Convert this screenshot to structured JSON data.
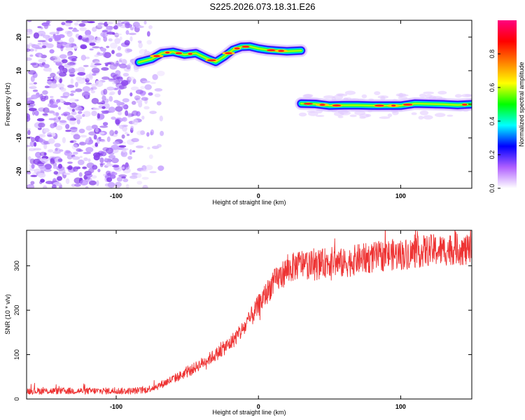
{
  "title": "S225.2026.073.18.31.E26",
  "chart_data": [
    {
      "type": "heatmap",
      "title": "",
      "xlabel": "Height of straight line (km)",
      "ylabel": "Frequency (Hz)",
      "xlim": [
        -163,
        150
      ],
      "ylim": [
        -25,
        25
      ],
      "xticks": [
        -100,
        0,
        100
      ],
      "xtick_labels": [
        "-100",
        "0",
        "100"
      ],
      "yticks": [
        -20,
        -10,
        0,
        10,
        20
      ],
      "ytick_labels": [
        "-20",
        "-10",
        "0",
        "10",
        "20"
      ],
      "colorbar": {
        "label": "Normalized spectral amplitude",
        "range": [
          0,
          1
        ],
        "ticks": [
          0.0,
          0.2,
          0.4,
          0.6,
          0.8
        ],
        "tick_labels": [
          "0.0",
          "0.2",
          "0.4",
          "0.6",
          "0.8"
        ],
        "colors": [
          "#ffffff",
          "#b060ff",
          "#0000ff",
          "#00ffff",
          "#00ff00",
          "#ffff00",
          "#ff7f00",
          "#ff0000",
          "#ff007f"
        ]
      },
      "noise_region": {
        "x_range": [
          -163,
          -78
        ],
        "freq_range": [
          -25,
          25
        ],
        "amplitude": 0.2
      },
      "ridges": [
        {
          "x": [
            -84,
            -75,
            -68,
            -60,
            -52,
            -44,
            -36,
            -30,
            -24,
            -18,
            -12,
            -6,
            0,
            6,
            12,
            20,
            30
          ],
          "freq": [
            12.5,
            13.5,
            15.2,
            15.6,
            14.8,
            15.2,
            13.6,
            12.6,
            14.2,
            16.2,
            17.1,
            17.2,
            16.6,
            16.2,
            16.0,
            15.8,
            16.0
          ]
        },
        {
          "x": [
            30,
            40,
            50,
            60,
            70,
            80,
            90,
            100,
            110,
            120,
            130,
            140,
            150
          ],
          "freq": [
            0.2,
            0.1,
            -0.4,
            -0.3,
            -0.3,
            -0.4,
            -0.4,
            -0.4,
            0.2,
            0.1,
            0.0,
            -0.2,
            0.0
          ]
        }
      ]
    },
    {
      "type": "line",
      "title": "",
      "xlabel": "Height of straight line (km)",
      "ylabel": "SNR (10 * v/v)",
      "xlim": [
        -163,
        150
      ],
      "ylim": [
        0,
        380
      ],
      "xticks": [
        -100,
        0,
        100
      ],
      "xtick_labels": [
        "-100",
        "0",
        "100"
      ],
      "yticks": [
        0,
        100,
        200,
        300
      ],
      "ytick_labels": [
        "0",
        "100",
        "200",
        "300"
      ],
      "color": "#ee3333",
      "series": [
        {
          "name": "SNR",
          "x": [
            -163,
            -140,
            -120,
            -100,
            -90,
            -80,
            -70,
            -60,
            -50,
            -40,
            -30,
            -20,
            -10,
            0,
            10,
            20,
            30,
            40,
            50,
            60,
            70,
            80,
            90,
            100,
            110,
            120,
            130,
            140,
            150
          ],
          "values": [
            18,
            18,
            18,
            18,
            18,
            20,
            30,
            45,
            60,
            80,
            100,
            125,
            160,
            210,
            260,
            290,
            305,
            300,
            310,
            305,
            315,
            318,
            325,
            325,
            330,
            335,
            335,
            340,
            330
          ]
        }
      ]
    }
  ]
}
